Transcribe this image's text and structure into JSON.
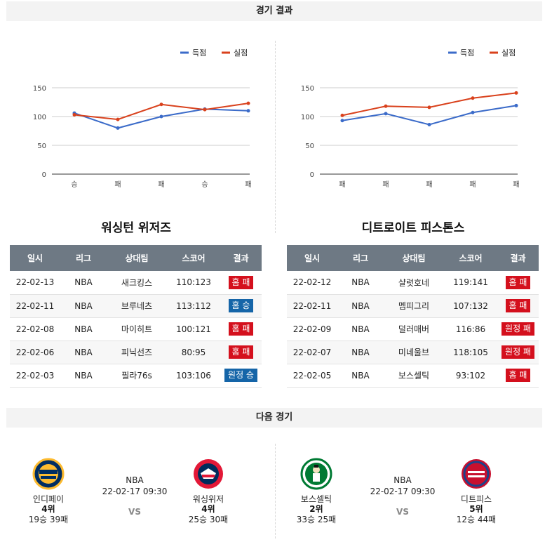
{
  "sections": {
    "results_title": "경기 결과",
    "next_title": "다음 경기"
  },
  "legend": {
    "scored": "득점",
    "conceded": "실점"
  },
  "colors": {
    "scored": "#3b6bc9",
    "conceded": "#d9411c",
    "loss_badge": "#d4101d",
    "win_badge": "#1565a8",
    "header_bg": "#6e7984"
  },
  "chart_data": [
    {
      "type": "line",
      "categories": [
        "승",
        "패",
        "패",
        "승",
        "패"
      ],
      "series": [
        {
          "name": "득점",
          "values": [
            106,
            80,
            100,
            113,
            110
          ]
        },
        {
          "name": "실점",
          "values": [
            103,
            95,
            121,
            112,
            123
          ]
        }
      ],
      "yticks": [
        0,
        50,
        100,
        150
      ],
      "ylim": [
        0,
        150
      ],
      "grid": true,
      "legend_position": "top-right"
    },
    {
      "type": "line",
      "categories": [
        "패",
        "패",
        "패",
        "패",
        "패"
      ],
      "series": [
        {
          "name": "득점",
          "values": [
            93,
            105,
            86,
            107,
            119
          ]
        },
        {
          "name": "실점",
          "values": [
            102,
            118,
            116,
            132,
            141
          ]
        }
      ],
      "yticks": [
        0,
        50,
        100,
        150
      ],
      "ylim": [
        0,
        150
      ],
      "grid": true,
      "legend_position": "top-right"
    }
  ],
  "tables": {
    "headers": [
      "일시",
      "리그",
      "상대팀",
      "스코어",
      "결과"
    ],
    "left": {
      "team": "워싱턴 위저즈",
      "rows": [
        {
          "date": "22-02-13",
          "league": "NBA",
          "opponent": "새크킹스",
          "score": "110:123",
          "result": "홈 패",
          "win": false
        },
        {
          "date": "22-02-11",
          "league": "NBA",
          "opponent": "브루네츠",
          "score": "113:112",
          "result": "홈 승",
          "win": true
        },
        {
          "date": "22-02-08",
          "league": "NBA",
          "opponent": "마이히트",
          "score": "100:121",
          "result": "홈 패",
          "win": false
        },
        {
          "date": "22-02-06",
          "league": "NBA",
          "opponent": "피닉선즈",
          "score": "80:95",
          "result": "홈 패",
          "win": false
        },
        {
          "date": "22-02-03",
          "league": "NBA",
          "opponent": "필라76s",
          "score": "103:106",
          "result": "원정 승",
          "win": true
        }
      ]
    },
    "right": {
      "team": "디트로이트 피스톤스",
      "rows": [
        {
          "date": "22-02-12",
          "league": "NBA",
          "opponent": "샬럿호네",
          "score": "119:141",
          "result": "홈 패",
          "win": false
        },
        {
          "date": "22-02-11",
          "league": "NBA",
          "opponent": "멤피그리",
          "score": "107:132",
          "result": "홈 패",
          "win": false
        },
        {
          "date": "22-02-09",
          "league": "NBA",
          "opponent": "덜러매버",
          "score": "116:86",
          "result": "원정 패",
          "win": false
        },
        {
          "date": "22-02-07",
          "league": "NBA",
          "opponent": "미네울브",
          "score": "118:105",
          "result": "원정 패",
          "win": false
        },
        {
          "date": "22-02-05",
          "league": "NBA",
          "opponent": "보스셀틱",
          "score": "93:102",
          "result": "홈 패",
          "win": false
        }
      ]
    }
  },
  "next_games": [
    {
      "league": "NBA",
      "datetime": "22-02-17 09:30",
      "vs": "VS",
      "home": {
        "name": "인디페이",
        "rank": "4위",
        "record": "19승 39패",
        "logo_icon": "pacers-logo"
      },
      "away": {
        "name": "워싱위저",
        "rank": "4위",
        "record": "25승 30패",
        "logo_icon": "wizards-logo"
      }
    },
    {
      "league": "NBA",
      "datetime": "22-02-17 09:30",
      "vs": "VS",
      "home": {
        "name": "보스셀틱",
        "rank": "2위",
        "record": "33승 25패",
        "logo_icon": "celtics-logo"
      },
      "away": {
        "name": "디트피스",
        "rank": "5위",
        "record": "12승 44패",
        "logo_icon": "pistons-logo"
      }
    }
  ]
}
